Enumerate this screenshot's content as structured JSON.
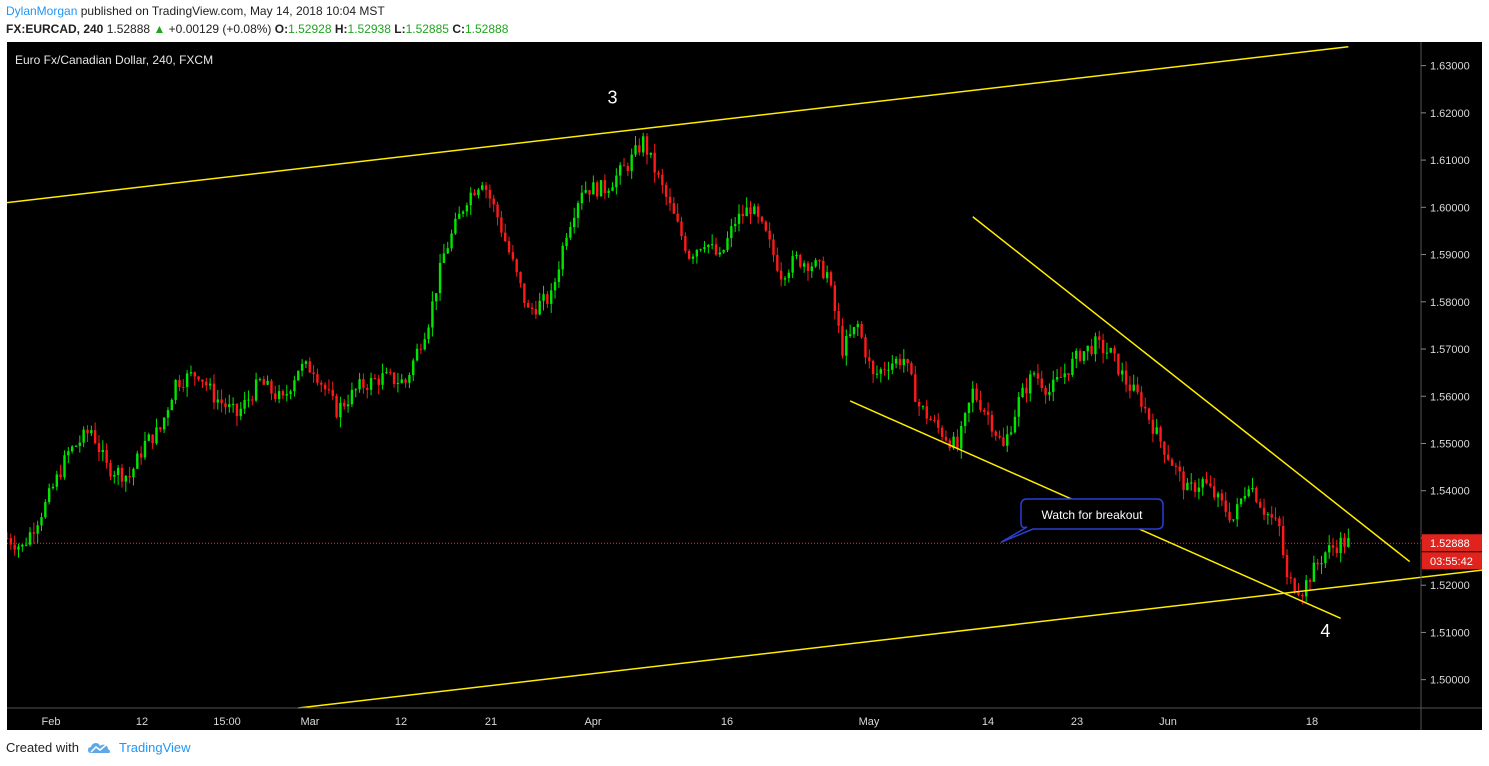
{
  "header": {
    "author": "DylanMorgan",
    "published_text": "published on TradingView.com, May 14, 2018 10:04 MST",
    "symbol": "FX:EURCAD, 240",
    "last": "1.52888",
    "change": "+0.00129 (+0.08%)",
    "o_label": "O:",
    "o_val": "1.52928",
    "h_label": "H:",
    "h_val": "1.52938",
    "l_label": "L:",
    "l_val": "1.52885",
    "c_label": "C:",
    "c_val": "1.52888"
  },
  "footer": {
    "created_with": "Created with",
    "brand": "TradingView"
  },
  "colors": {
    "up": "#00e600",
    "down": "#ff1a1a",
    "trendline": "#ffee00",
    "price_line": "#ff2a2a",
    "price_tag": "#e0231c",
    "callout_border": "#2b3fd4"
  },
  "chart_data": {
    "type": "candlestick",
    "title": "Euro Fx/Canadian Dollar, 240, FXCM",
    "ylim": [
      1.494,
      1.635
    ],
    "y_ticks": [
      "1.63000",
      "1.62000",
      "1.61000",
      "1.60000",
      "1.59000",
      "1.58000",
      "1.57000",
      "1.56000",
      "1.55000",
      "1.54000",
      "1.53000",
      "1.52000",
      "1.51000",
      "1.50000"
    ],
    "x_ticks": [
      "Feb",
      "12",
      "15:00",
      "Mar",
      "12",
      "21",
      "Apr",
      "16",
      "May",
      "14",
      "23",
      "Jun",
      "18"
    ],
    "last_price": "1.52888",
    "countdown": "03:55:42",
    "close_path": [
      [
        0,
        1.53
      ],
      [
        2,
        1.528
      ],
      [
        5,
        1.537
      ],
      [
        8,
        1.548
      ],
      [
        11,
        1.553
      ],
      [
        13,
        1.545
      ],
      [
        16,
        1.543
      ],
      [
        18,
        1.55
      ],
      [
        20,
        1.553
      ],
      [
        22,
        1.563
      ],
      [
        25,
        1.565
      ],
      [
        27,
        1.56
      ],
      [
        30,
        1.556
      ],
      [
        33,
        1.563
      ],
      [
        36,
        1.559
      ],
      [
        38,
        1.566
      ],
      [
        40,
        1.566
      ],
      [
        43,
        1.557
      ],
      [
        46,
        1.562
      ],
      [
        49,
        1.564
      ],
      [
        52,
        1.563
      ],
      [
        55,
        1.576
      ],
      [
        57,
        1.59
      ],
      [
        60,
        1.602
      ],
      [
        62,
        1.606
      ],
      [
        64,
        1.598
      ],
      [
        66,
        1.588
      ],
      [
        68,
        1.578
      ],
      [
        71,
        1.581
      ],
      [
        73,
        1.595
      ],
      [
        75,
        1.604
      ],
      [
        78,
        1.604
      ],
      [
        81,
        1.609
      ],
      [
        83,
        1.614
      ],
      [
        85,
        1.606
      ],
      [
        87,
        1.598
      ],
      [
        89,
        1.59
      ],
      [
        91,
        1.593
      ],
      [
        93,
        1.589
      ],
      [
        95,
        1.597
      ],
      [
        97,
        1.6
      ],
      [
        99,
        1.594
      ],
      [
        101,
        1.586
      ],
      [
        103,
        1.589
      ],
      [
        105,
        1.588
      ],
      [
        107,
        1.586
      ],
      [
        109,
        1.57
      ],
      [
        111,
        1.575
      ],
      [
        113,
        1.564
      ],
      [
        115,
        1.567
      ],
      [
        117,
        1.568
      ],
      [
        119,
        1.558
      ],
      [
        121,
        1.554
      ],
      [
        124,
        1.549
      ],
      [
        126,
        1.561
      ],
      [
        128,
        1.556
      ],
      [
        130,
        1.549
      ],
      [
        132,
        1.559
      ],
      [
        134,
        1.565
      ],
      [
        136,
        1.561
      ],
      [
        138,
        1.565
      ],
      [
        140,
        1.569
      ],
      [
        142,
        1.571
      ],
      [
        144,
        1.569
      ],
      [
        146,
        1.563
      ],
      [
        148,
        1.559
      ],
      [
        150,
        1.552
      ],
      [
        152,
        1.546
      ],
      [
        154,
        1.54
      ],
      [
        156,
        1.542
      ],
      [
        158,
        1.538
      ],
      [
        160,
        1.534
      ],
      [
        162,
        1.542
      ],
      [
        164,
        1.536
      ],
      [
        166,
        1.532
      ],
      [
        167,
        1.521
      ],
      [
        169,
        1.519
      ],
      [
        170,
        1.522
      ],
      [
        172,
        1.527
      ],
      [
        174,
        1.529
      ],
      [
        175,
        1.529
      ]
    ],
    "trendlines": [
      {
        "x1": 0,
        "y1": 1.601,
        "x2": 175,
        "y2": 1.634
      },
      {
        "x1": 38,
        "y1": 1.494,
        "x2": 255,
        "y2": 1.535
      },
      {
        "x1": 126,
        "y1": 1.598,
        "x2": 183,
        "y2": 1.525
      },
      {
        "x1": 110,
        "y1": 1.559,
        "x2": 174,
        "y2": 1.513
      }
    ],
    "annotations": [
      {
        "label": "3",
        "x": 79,
        "y": 1.622
      },
      {
        "label": "4",
        "x": 172,
        "y": 1.509
      }
    ],
    "callout": "Watch for breakout"
  }
}
